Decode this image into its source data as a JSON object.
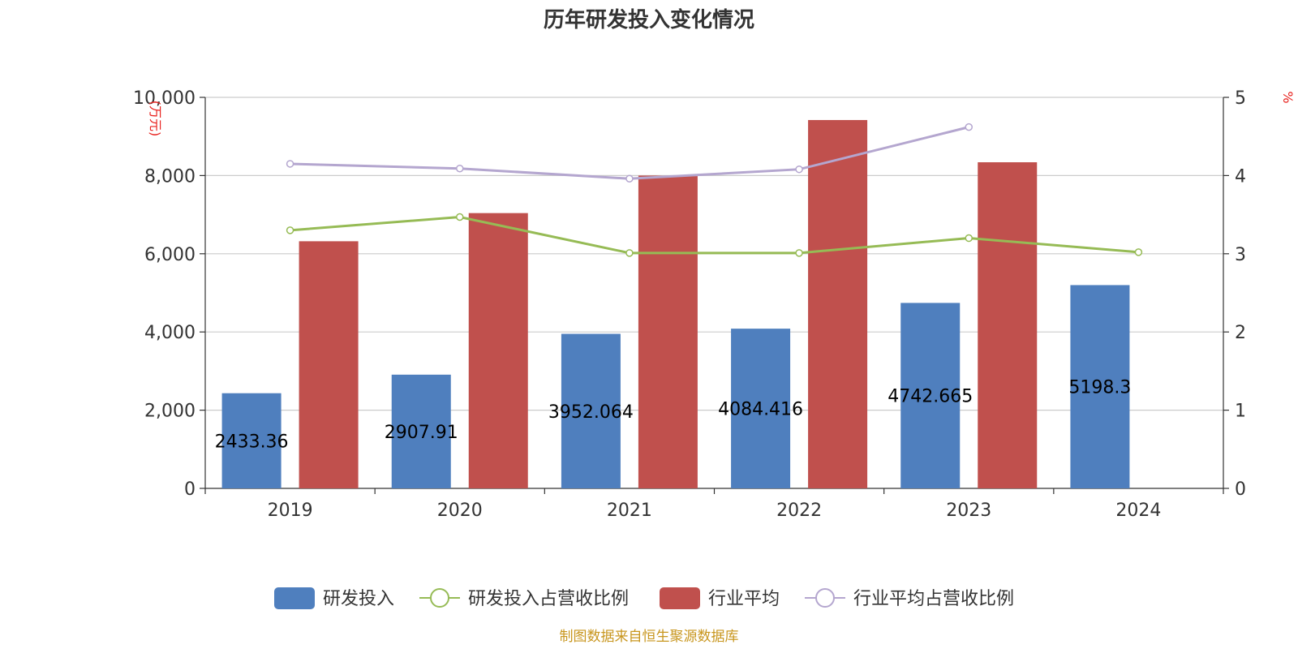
{
  "chart_data": {
    "type": "bar",
    "title": "历年研发投入变化情况",
    "categories": [
      "2019",
      "2020",
      "2021",
      "2022",
      "2023",
      "2024"
    ],
    "left_axis": {
      "unit": "(万元)",
      "ylim": [
        0,
        10000
      ],
      "ticks": [
        "0",
        "2,000",
        "4,000",
        "6,000",
        "8,000",
        "10,000"
      ]
    },
    "right_axis": {
      "unit": "%",
      "ylim": [
        0,
        5
      ],
      "ticks": [
        "0",
        "1",
        "2",
        "3",
        "4",
        "5"
      ]
    },
    "grid": true,
    "legend_position": "bottom",
    "series": [
      {
        "name": "研发投入",
        "type": "bar",
        "axis": "left",
        "color": "#4f7fbe",
        "values": [
          2433.36,
          2907.91,
          3952.064,
          4084.416,
          4742.665,
          5198.3
        ],
        "labels": [
          "2433.36",
          "2907.91",
          "3952.064",
          "4084.416",
          "4742.665",
          "5198.3"
        ]
      },
      {
        "name": "研发投入占营收比例",
        "type": "line",
        "axis": "right",
        "color": "#96bb55",
        "values": [
          3.3,
          3.47,
          3.01,
          3.01,
          3.2,
          3.02
        ]
      },
      {
        "name": "行业平均",
        "type": "bar",
        "axis": "left",
        "color": "#c0504d",
        "values": [
          6320,
          7040,
          8000,
          9420,
          8340,
          null
        ]
      },
      {
        "name": "行业平均占营收比例",
        "type": "line",
        "axis": "right",
        "color": "#b4a6cf",
        "values": [
          4.15,
          4.09,
          3.96,
          4.08,
          4.62,
          null
        ]
      }
    ],
    "source": "制图数据来自恒生聚源数据库"
  }
}
